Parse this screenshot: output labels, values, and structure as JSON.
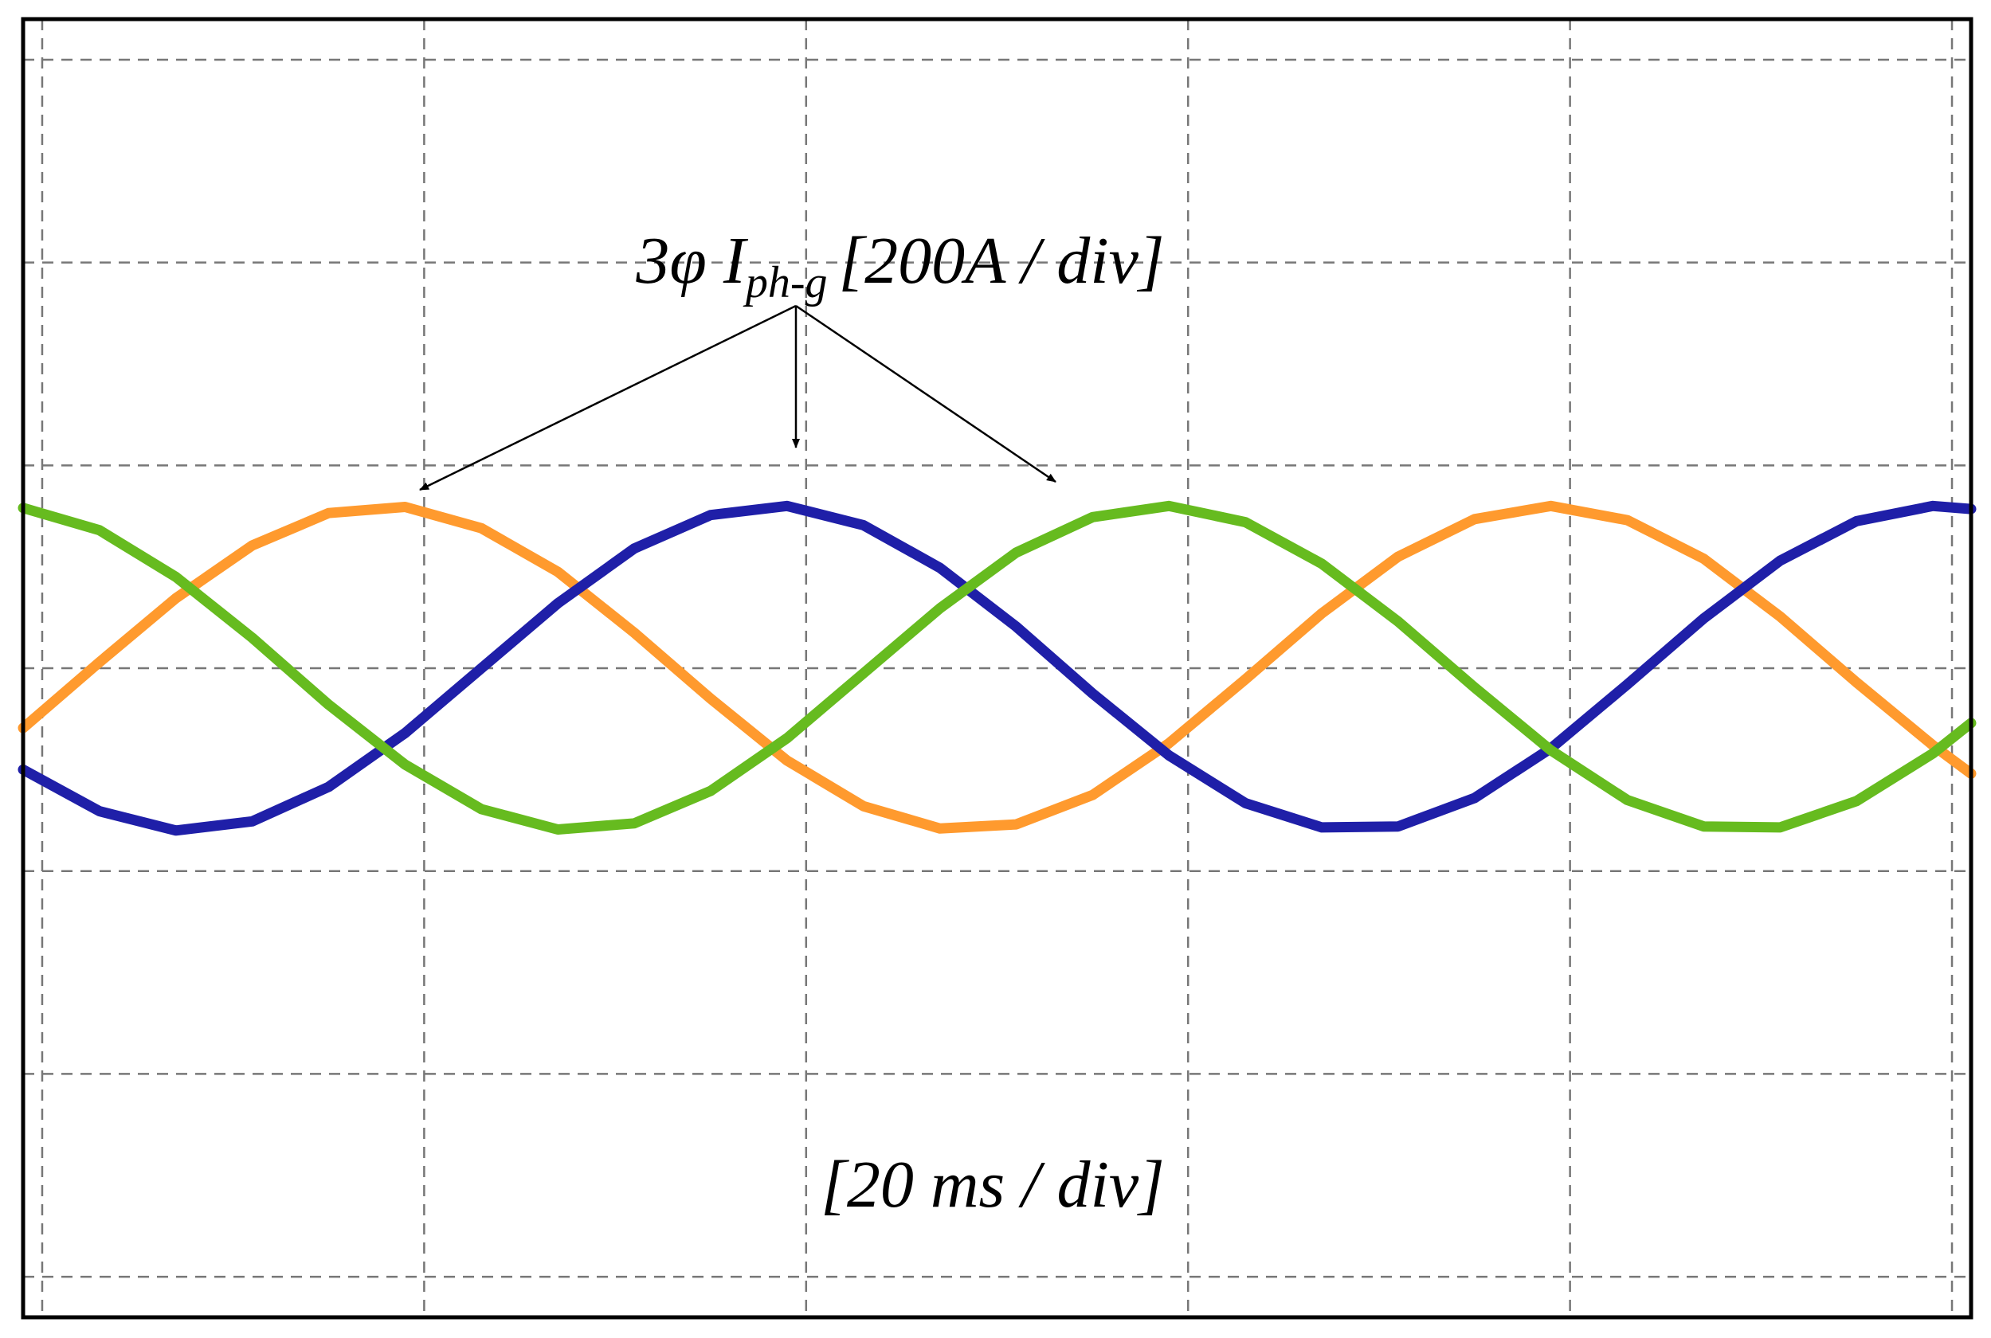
{
  "chart_data": {
    "type": "line",
    "ylabel": "3φ I",
    "ylabel_subscript": "ph-g",
    "ylabel_unit": "[200A / div]",
    "xlabel": "[20 ms / div]",
    "x": [
      -1,
      3,
      7,
      11,
      15,
      19,
      23,
      27,
      31,
      35,
      39,
      43,
      47,
      51,
      55,
      59,
      63,
      67,
      71,
      75,
      79,
      83,
      87,
      91,
      95,
      99,
      101
    ],
    "series": [
      {
        "color": "#ff9a2e",
        "values": [
          -59,
          6,
          69,
          121,
          153,
          159,
          138,
          95,
          35,
          -30,
          -91,
          -136,
          -158,
          -154,
          -125,
          -74,
          -11,
          54,
          110,
          147,
          160,
          146,
          108,
          51,
          -14,
          -76,
          -104
        ]
      },
      {
        "color": "#1f1fa8",
        "values": [
          -100,
          -141,
          -160,
          -151,
          -117,
          -64,
          0,
          64,
          118,
          151,
          160,
          141,
          99,
          41,
          -25,
          -86,
          -133,
          -157,
          -156,
          -128,
          -79,
          -16,
          49,
          106,
          145,
          160,
          157
        ]
      },
      {
        "color": "#66bb1f",
        "values": [
          158,
          136,
          90,
          30,
          -36,
          -95,
          -139,
          -159,
          -153,
          -121,
          -69,
          -5,
          59,
          114,
          149,
          160,
          144,
          103,
          46,
          -19,
          -81,
          -130,
          -156,
          -157,
          -131,
          -84,
          -54
        ]
      }
    ],
    "xlim": [
      -1,
      101
    ],
    "ylim": [
      -640,
      640
    ],
    "xticks": [
      0,
      20,
      40,
      60,
      80,
      100
    ],
    "yticks": [
      -600,
      -400,
      -200,
      0,
      200,
      400,
      600
    ],
    "grid": true
  }
}
